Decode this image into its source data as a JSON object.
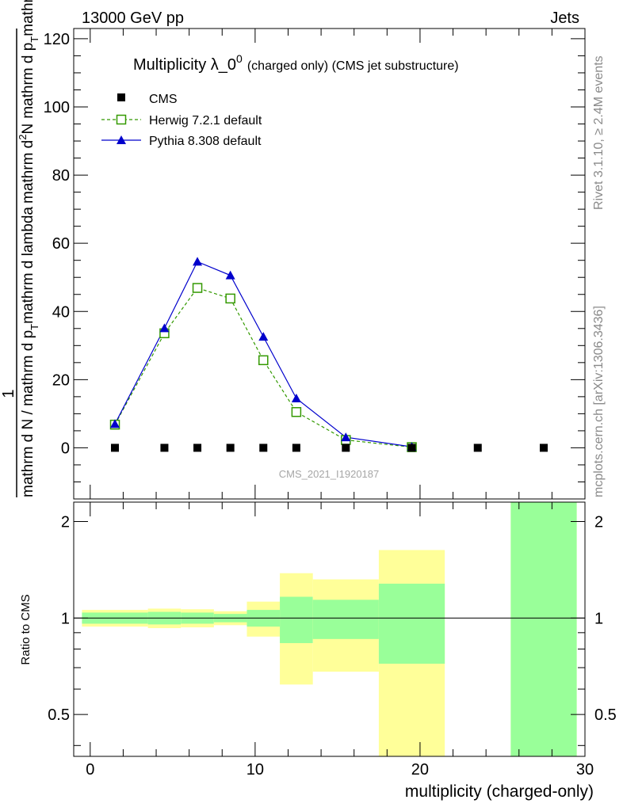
{
  "header": {
    "energy_label": "13000 GeV pp",
    "process_label": "Jets"
  },
  "side_labels": {
    "rivet": "Rivet 3.1.10, ≥ 2.4M events",
    "mcplots": "mcplots.cern.ch [arXiv:1306.3436]"
  },
  "watermark": "CMS_2021_I1920187",
  "colors": {
    "cms": "#000000",
    "herwig": "#339900",
    "pythia": "#0000cc",
    "band_inner": "#99ff99",
    "band_outer": "#ffff99"
  },
  "chart_data": [
    {
      "type": "line",
      "title_main": "Multiplicity λ_0",
      "title_sup": "0",
      "title_rest": "(charged only) (CMS jet substructure)",
      "ylabel_lines": [
        "1",
        "mathrm d N / mathrm d p",
        "T",
        "mathrm d lambda",
        "mathrm d",
        "2",
        "N",
        "mathrm d p",
        "T",
        "mathrm d lambda"
      ],
      "xlim": [
        -1,
        30
      ],
      "ylim": [
        -15,
        123
      ],
      "yticks": [
        0,
        20,
        40,
        60,
        80,
        100,
        120
      ],
      "ytick_labels": [
        "0",
        "20",
        "40",
        "60",
        "80",
        "100",
        "120"
      ],
      "series": [
        {
          "name": "CMS",
          "style": "black-squares",
          "x": [
            1.5,
            4.5,
            6.5,
            8.5,
            10.5,
            12.5,
            15.5,
            19.5,
            23.5,
            27.5
          ],
          "y": [
            0,
            0,
            0,
            0,
            0,
            0,
            0,
            0,
            0,
            0
          ]
        },
        {
          "name": "Herwig 7.2.1 default",
          "style": "dashed-open-squares",
          "x": [
            1.5,
            4.5,
            6.5,
            8.5,
            10.5,
            12.5,
            15.5,
            19.5
          ],
          "y": [
            6.8,
            33.6,
            46.9,
            43.8,
            25.7,
            10.5,
            2.3,
            0.2
          ]
        },
        {
          "name": "Pythia 8.308 default",
          "style": "solid-triangles",
          "x": [
            1.5,
            4.5,
            6.5,
            8.5,
            10.5,
            12.5,
            15.5,
            19.5
          ],
          "y": [
            7.0,
            35.1,
            54.6,
            50.6,
            32.6,
            14.5,
            3.1,
            0.3
          ]
        }
      ]
    },
    {
      "type": "area",
      "ylabel": "Ratio to CMS",
      "xlabel": "multiplicity (charged-only)",
      "xlim": [
        -1,
        30
      ],
      "ylim": [
        0.37,
        2.3
      ],
      "yscale": "log",
      "xticks": [
        0,
        10,
        20,
        30
      ],
      "xtick_labels": [
        "0",
        "10",
        "20",
        "30"
      ],
      "yticks": [
        0.5,
        1,
        2
      ],
      "ytick_labels": [
        "0.5",
        "1",
        "2"
      ],
      "reference_line": 1,
      "bands": [
        {
          "x0": -0.5,
          "x1": 3.5,
          "inner": [
            0.96,
            1.04
          ],
          "outer": [
            0.94,
            1.06
          ]
        },
        {
          "x0": 3.5,
          "x1": 5.5,
          "inner": [
            0.955,
            1.045
          ],
          "outer": [
            0.93,
            1.07
          ]
        },
        {
          "x0": 5.5,
          "x1": 7.5,
          "inner": [
            0.96,
            1.04
          ],
          "outer": [
            0.935,
            1.065
          ]
        },
        {
          "x0": 7.5,
          "x1": 9.5,
          "inner": [
            0.97,
            1.03
          ],
          "outer": [
            0.95,
            1.05
          ]
        },
        {
          "x0": 9.5,
          "x1": 11.5,
          "inner": [
            0.94,
            1.06
          ],
          "outer": [
            0.875,
            1.125
          ]
        },
        {
          "x0": 11.5,
          "x1": 13.5,
          "inner": [
            0.835,
            1.165
          ],
          "outer": [
            0.62,
            1.38
          ]
        },
        {
          "x0": 13.5,
          "x1": 17.5,
          "inner": [
            0.86,
            1.14
          ],
          "outer": [
            0.68,
            1.32
          ]
        },
        {
          "x0": 17.5,
          "x1": 21.5,
          "inner": [
            0.72,
            1.28
          ],
          "outer": [
            0.37,
            1.63
          ]
        },
        {
          "x0": 25.5,
          "x1": 29.5,
          "inner": [
            0.37,
            2.3
          ],
          "outer": [
            0.37,
            2.3
          ]
        }
      ]
    }
  ]
}
